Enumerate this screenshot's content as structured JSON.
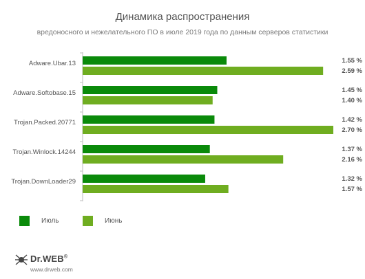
{
  "title": "Динамика распространения",
  "subtitle": "вредоносного и нежелательного ПО в июле 2019 года по данным серверов статистики",
  "chart_data": {
    "type": "bar",
    "orientation": "horizontal",
    "categories": [
      "Adware.Ubar.13",
      "Adware.Softobase.15",
      "Trojan.Packed.20771",
      "Trojan.Winlock.14244",
      "Trojan.DownLoader29"
    ],
    "series": [
      {
        "name": "Июль",
        "color": "#0a8a0a",
        "values": [
          1.55,
          1.45,
          1.42,
          1.37,
          1.32
        ],
        "labels": [
          "1.55 %",
          "1.45 %",
          "1.42 %",
          "1.37 %",
          "1.32 %"
        ]
      },
      {
        "name": "Июнь",
        "color": "#6fad20",
        "values": [
          2.59,
          1.4,
          2.7,
          2.16,
          1.57
        ],
        "labels": [
          "2.59 %",
          "1.40 %",
          "2.70 %",
          "2.16 %",
          "1.57 %"
        ]
      }
    ],
    "xlim": [
      0,
      2.7
    ],
    "grid": false,
    "legend": "bottom-left"
  },
  "logo": {
    "name": "Dr.WEB",
    "trademark": "®",
    "url": "www.drweb.com"
  }
}
